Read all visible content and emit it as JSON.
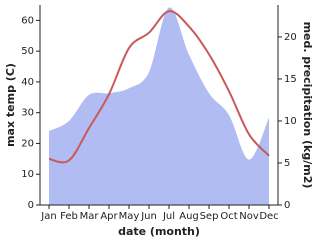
{
  "chart_data": {
    "type": "line",
    "x_label": "date (month)",
    "y_label": "max temp (C)",
    "y2_label": "med. precipitation (kg/m2)",
    "categories": [
      "Jan",
      "Feb",
      "Mar",
      "Apr",
      "May",
      "Jun",
      "Jul",
      "Aug",
      "Sep",
      "Oct",
      "Nov",
      "Dec"
    ],
    "series": [
      {
        "name": "max temp",
        "color": "#c85a5a",
        "values": [
          15,
          14.5,
          25,
          36,
          51,
          56,
          63,
          58,
          49,
          37,
          23,
          16
        ]
      },
      {
        "name": "med. precipitation",
        "color": "#b0bcf2",
        "axis": "y2",
        "values": [
          8.8,
          10,
          13.1,
          13.3,
          13.9,
          15.8,
          23.5,
          17.9,
          13.3,
          10.7,
          5.4,
          10.4
        ]
      }
    ],
    "ylim": [
      0,
      65
    ],
    "yticks": [
      0,
      10,
      20,
      30,
      40,
      50,
      60
    ],
    "y2lim": [
      0,
      23.8
    ],
    "y2ticks": [
      0,
      5,
      10,
      15,
      20
    ]
  }
}
